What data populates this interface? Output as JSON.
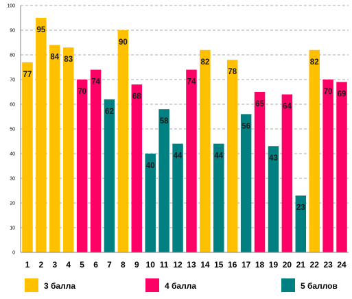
{
  "chart_data": {
    "type": "bar",
    "title": "",
    "xlabel": "",
    "ylabel": "",
    "ylim": [
      0,
      100
    ],
    "ytick_values": [
      0,
      10,
      20,
      30,
      40,
      50,
      60,
      70,
      80,
      90,
      100
    ],
    "grid": "horizontal dashed",
    "legend_position": "bottom",
    "categories": [
      "1",
      "2",
      "3",
      "4",
      "5",
      "6",
      "7",
      "8",
      "9",
      "10",
      "11",
      "12",
      "13",
      "14",
      "15",
      "16",
      "17",
      "18",
      "19",
      "20",
      "21",
      "22",
      "23",
      "24"
    ],
    "values": [
      77,
      95,
      84,
      83,
      70,
      74,
      62,
      90,
      68,
      40,
      58,
      44,
      74,
      82,
      44,
      78,
      56,
      65,
      43,
      64,
      23,
      82,
      70,
      69
    ],
    "bar_groups": [
      "3",
      "3",
      "3",
      "3",
      "4",
      "4",
      "5",
      "3",
      "4",
      "5",
      "5",
      "5",
      "4",
      "3",
      "5",
      "3",
      "5",
      "4",
      "5",
      "4",
      "5",
      "3",
      "4",
      "4"
    ],
    "legend": [
      {
        "key": "3",
        "label": "3 балла",
        "color": "#FFC000"
      },
      {
        "key": "4",
        "label": "4 балла",
        "color": "#FF0066"
      },
      {
        "key": "5",
        "label": "5 баллов",
        "color": "#008080"
      }
    ]
  }
}
